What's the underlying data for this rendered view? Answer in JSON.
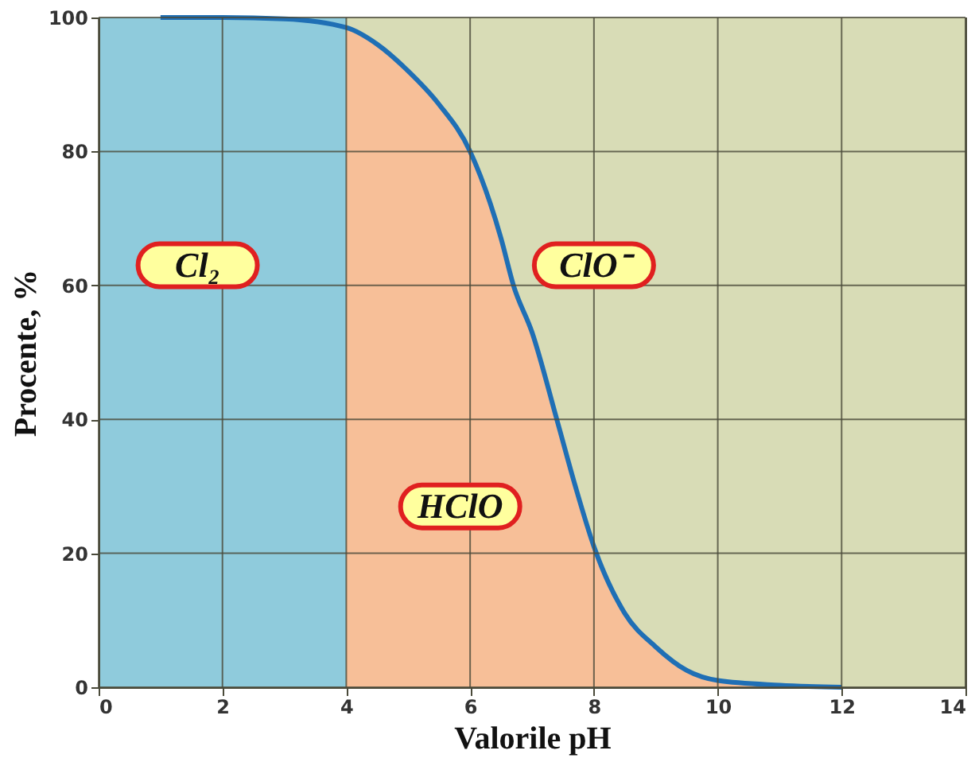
{
  "chart_data": {
    "type": "line",
    "xlabel": "Valorile pH",
    "ylabel": "Procente, %",
    "xlim": [
      0,
      14
    ],
    "ylim": [
      0,
      100
    ],
    "xticks": [
      0,
      2,
      4,
      6,
      8,
      10,
      12,
      14
    ],
    "yticks": [
      0,
      20,
      40,
      60,
      80,
      100
    ],
    "grid": true,
    "legend": false,
    "bands": [
      {
        "axis": "x",
        "from": 0,
        "to": 4,
        "color": "#8fcbdc",
        "label": "Cl₂"
      },
      {
        "axis": "x",
        "from": 4,
        "to": 14,
        "color": "#d8dcb6",
        "label": "ClO⁻"
      }
    ],
    "series": [
      {
        "type": "area",
        "name": "HClO",
        "color": "#f7bf98",
        "x": [
          4,
          4.5,
          5,
          5.5,
          6,
          6.5,
          6.7,
          7,
          7.4,
          7.7,
          8,
          8.5,
          9,
          9.5,
          10,
          11,
          12
        ],
        "values": [
          98.5,
          96,
          92,
          87,
          80,
          67,
          60,
          53,
          40,
          30,
          21,
          11,
          6,
          2.5,
          1,
          0.3,
          0
        ]
      },
      {
        "color": "#1f6fb5",
        "x": [
          1,
          2,
          3,
          4,
          4.5,
          5,
          5.5,
          6,
          6.5,
          6.7,
          7,
          7.4,
          7.7,
          8,
          8.5,
          9,
          9.5,
          10,
          11,
          12
        ],
        "values": [
          100,
          100,
          99.8,
          98.5,
          96,
          92,
          87,
          80,
          67,
          60,
          53,
          40,
          30,
          21,
          11,
          6,
          2.5,
          1,
          0.3,
          0
        ]
      }
    ]
  }
}
